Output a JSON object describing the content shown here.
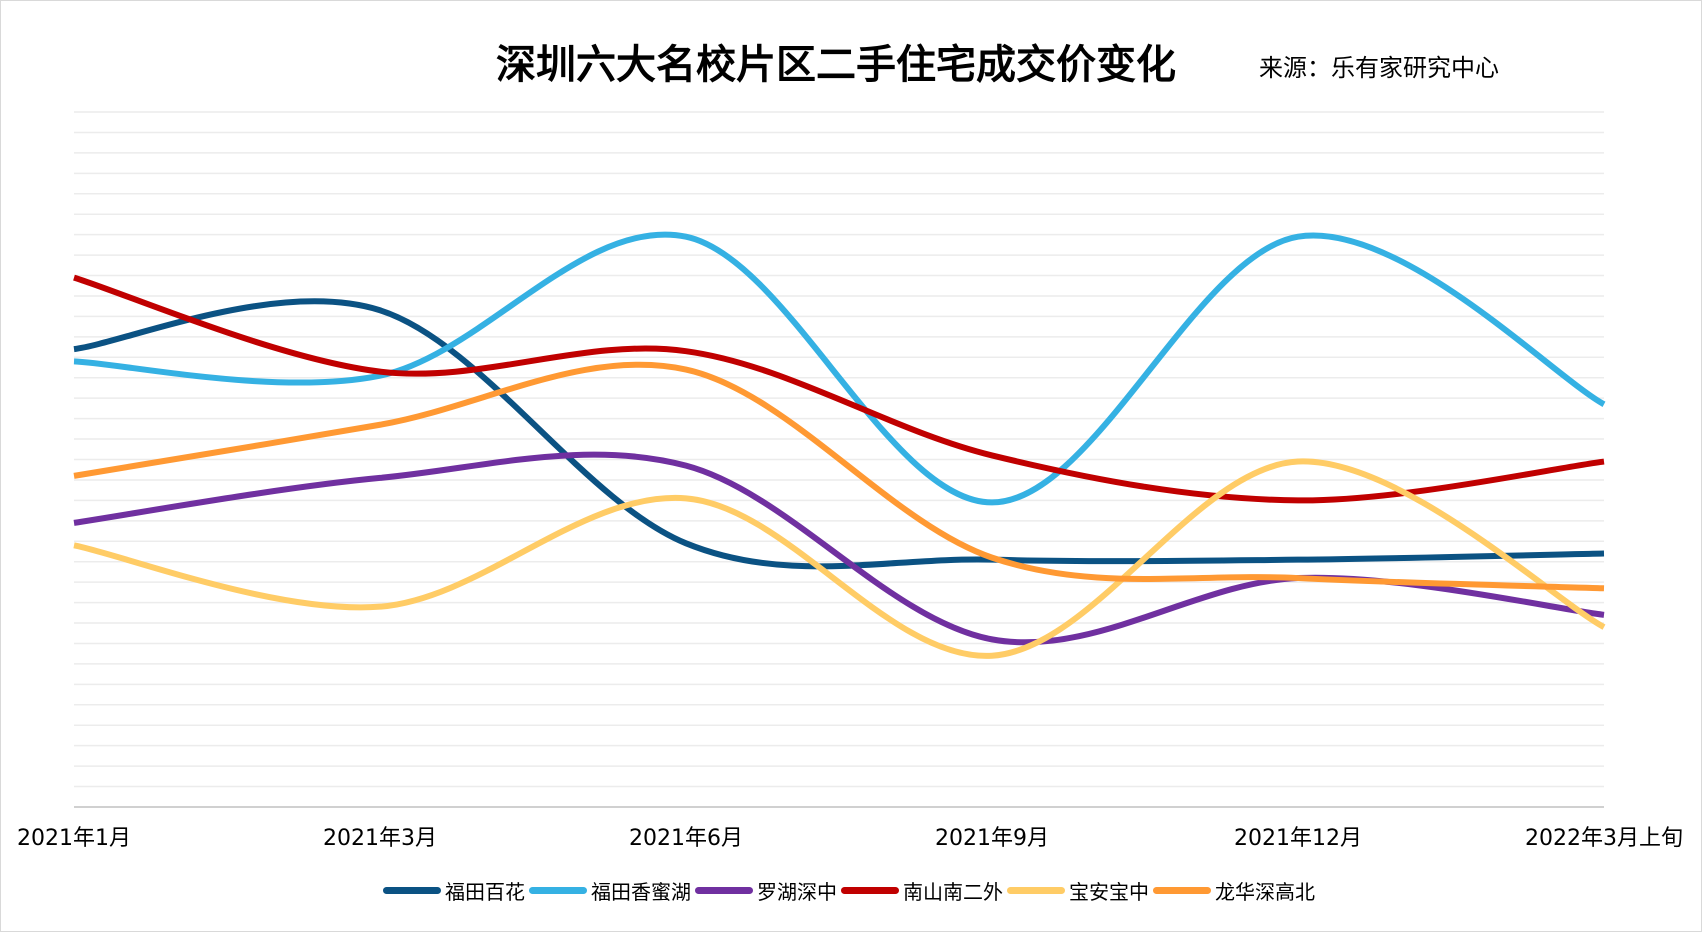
{
  "title": "深圳六大名校片区二手住宅成交价变化",
  "source": "来源：乐有家研究中心",
  "chart_data": {
    "type": "line",
    "title": "深圳六大名校片区二手住宅成交价变化",
    "categories": [
      "2021年1月",
      "2021年3月",
      "2021年6月",
      "2021年9月",
      "2021年12月",
      "2022年3月上旬"
    ],
    "smooth": true,
    "grid": true,
    "y_axis_labels_shown": false,
    "ylim": [
      0,
      34
    ],
    "legend_position": "bottom",
    "series": [
      {
        "name": "福田百花",
        "color": "#0b5283",
        "values": [
          22.4,
          24.3,
          12.9,
          12.1,
          12.1,
          12.4
        ]
      },
      {
        "name": "福田香蜜湖",
        "color": "#35b1e3",
        "values": [
          21.8,
          21.1,
          27.9,
          14.9,
          27.9,
          19.7
        ]
      },
      {
        "name": "罗湖深中",
        "color": "#7030a0",
        "values": [
          13.9,
          16.1,
          16.7,
          8.2,
          11.2,
          9.4
        ]
      },
      {
        "name": "南山南二外",
        "color": "#c00000",
        "values": [
          25.9,
          21.3,
          22.3,
          17.2,
          15.0,
          16.9
        ]
      },
      {
        "name": "宝安宝中",
        "color": "#ffcc66",
        "values": [
          12.8,
          9.8,
          15.1,
          7.4,
          16.9,
          8.8
        ]
      },
      {
        "name": "龙华深高北",
        "color": "#ff9933",
        "values": [
          16.2,
          18.7,
          21.4,
          12.2,
          11.2,
          10.7
        ]
      }
    ]
  }
}
